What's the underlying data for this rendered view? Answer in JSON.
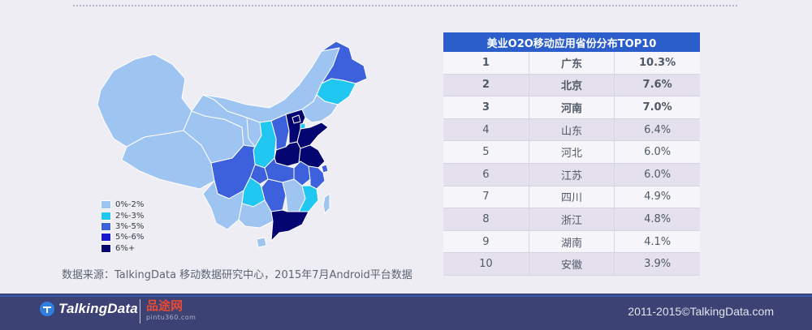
{
  "map": {
    "colors": {
      "band_0_2": "#9ec4f2",
      "band_2_3": "#20c7f0",
      "band_3_5": "#3d60dc",
      "band_5_6": "#1a1acc",
      "band_6_plus": "#050572",
      "border": "#ffffff"
    },
    "legend": [
      {
        "label": "0%-2%",
        "color": "#9ec4f2"
      },
      {
        "label": "2%-3%",
        "color": "#20c7f0"
      },
      {
        "label": "3%-5%",
        "color": "#3d60dc"
      },
      {
        "label": "5%-6%",
        "color": "#1a1acc"
      },
      {
        "label": "6%+",
        "color": "#050572"
      }
    ]
  },
  "table": {
    "title": "美业O2O移动应用省份分布TOP10",
    "rows": [
      {
        "rank": "1",
        "province": "广东",
        "share": "10.3%"
      },
      {
        "rank": "2",
        "province": "北京",
        "share": "7.6%"
      },
      {
        "rank": "3",
        "province": "河南",
        "share": "7.0%"
      },
      {
        "rank": "4",
        "province": "山东",
        "share": "6.4%"
      },
      {
        "rank": "5",
        "province": "河北",
        "share": "6.0%"
      },
      {
        "rank": "6",
        "province": "江苏",
        "share": "6.0%"
      },
      {
        "rank": "7",
        "province": "四川",
        "share": "4.9%"
      },
      {
        "rank": "8",
        "province": "浙江",
        "share": "4.8%"
      },
      {
        "rank": "9",
        "province": "湖南",
        "share": "4.1%"
      },
      {
        "rank": "10",
        "province": "安徽",
        "share": "3.9%"
      }
    ]
  },
  "source_note": "数据来源：TalkingData 移动数据研究中心，2015年7月Android平台数据",
  "footer": {
    "brand": "TalkingData",
    "partner_name": "品途网",
    "partner_url": "pintu360.com",
    "copyright": "2011-2015©TalkingData.com",
    "colors": {
      "bar": "#3c4273",
      "stripe": "#2f5fa8"
    }
  }
}
